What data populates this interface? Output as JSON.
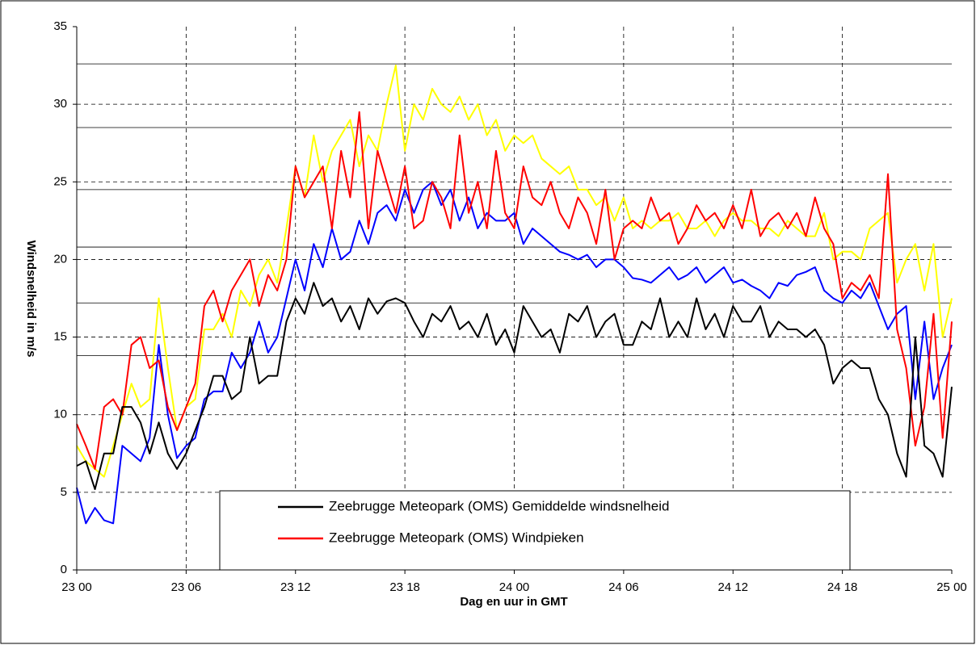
{
  "chart_data": {
    "type": "line",
    "xlabel": "Dag en uur in GMT",
    "ylabel": "Windsnelheid in m/s",
    "x": [
      0,
      0.5,
      1,
      1.5,
      2,
      2.5,
      3,
      3.5,
      4,
      4.5,
      5,
      5.5,
      6,
      6.5,
      7,
      7.5,
      8,
      8.5,
      9,
      9.5,
      10,
      10.5,
      11,
      11.5,
      12,
      12.5,
      13,
      13.5,
      14,
      14.5,
      15,
      15.5,
      16,
      16.5,
      17,
      17.5,
      18,
      18.5,
      19,
      19.5,
      20,
      20.5,
      21,
      21.5,
      22,
      22.5,
      23,
      23.5,
      24,
      24.5,
      25,
      25.5,
      26,
      26.5,
      27,
      27.5,
      28,
      28.5,
      29,
      29.5,
      30,
      30.5,
      31,
      31.5,
      32,
      32.5,
      33,
      33.5,
      34,
      34.5,
      35,
      35.5,
      36,
      36.5,
      37,
      37.5,
      38,
      38.5,
      39,
      39.5,
      40,
      40.5,
      41,
      41.5,
      42,
      42.5,
      43,
      43.5,
      44,
      44.5,
      45,
      45.5,
      46,
      46.5,
      47,
      47.5,
      48
    ],
    "series": [
      {
        "name": "Zeebrugge Meteopark (OMS) Gemiddelde windsnelheid",
        "color": "#000000",
        "values": [
          6.7,
          7,
          5.2,
          7.5,
          7.5,
          10.5,
          10.5,
          9.5,
          7.5,
          9.5,
          7.5,
          6.5,
          7.5,
          9,
          10.5,
          12.5,
          12.5,
          11,
          11.5,
          15,
          12,
          12.5,
          12.5,
          16,
          17.5,
          16.5,
          18.5,
          17,
          17.5,
          16,
          17,
          15.5,
          17.5,
          16.5,
          17.3,
          17.5,
          17.2,
          16,
          15,
          16.5,
          16,
          17,
          15.5,
          16,
          15,
          16.5,
          14.5,
          15.5,
          14,
          17,
          16,
          15,
          15.5,
          14,
          16.5,
          16,
          17,
          15,
          16,
          16.5,
          14.5,
          14.5,
          16,
          15.5,
          17.5,
          15,
          16,
          15,
          17.5,
          15.5,
          16.5,
          15,
          17,
          16,
          16,
          17,
          15,
          16,
          15.5,
          15.5,
          15,
          15.5,
          14.5,
          12,
          13,
          13.5,
          13,
          13,
          11,
          10,
          7.5,
          6,
          15,
          8,
          7.5,
          6,
          11.8
        ]
      },
      {
        "name": "Zeebrugge Meteopark (OMS) Windpieken",
        "color": "#ff0000",
        "values": [
          9.4,
          8,
          6.5,
          10.5,
          11,
          10,
          14.5,
          15,
          13,
          13.5,
          10.5,
          9,
          10.5,
          12,
          17,
          18,
          16,
          18,
          19,
          20,
          17,
          19,
          18,
          20,
          26,
          24,
          25,
          26,
          22,
          27,
          24,
          29.5,
          22,
          27,
          25,
          23,
          26,
          22,
          22.5,
          25,
          24,
          22,
          28,
          23,
          25,
          22,
          27,
          23,
          22,
          26,
          24,
          23.5,
          25,
          23,
          22,
          24,
          23,
          21,
          24.5,
          20,
          22,
          22.5,
          22,
          24,
          22.5,
          23,
          21,
          22,
          23.5,
          22.5,
          23,
          22,
          23.5,
          22,
          24.5,
          21.5,
          22.5,
          23,
          22,
          23,
          21.5,
          24,
          22,
          21,
          17.5,
          18.5,
          18,
          19,
          17.5,
          25.5,
          15.5,
          13,
          8,
          10.5,
          16.5,
          8.5,
          16
        ]
      },
      {
        "color": "#0000ff",
        "values": [
          5.3,
          3,
          4,
          3.2,
          3,
          8,
          7.5,
          7,
          8.5,
          14.5,
          10,
          7.2,
          8,
          8.5,
          11,
          11.5,
          11.5,
          14,
          13,
          14,
          16,
          14,
          15,
          17.5,
          20,
          18,
          21,
          19.5,
          22,
          20,
          20.5,
          22.5,
          21,
          23,
          23.5,
          22.5,
          24.5,
          23,
          24.5,
          25,
          23.5,
          24.5,
          22.5,
          24,
          22,
          23,
          22.5,
          22.5,
          23,
          21,
          22,
          21.5,
          21,
          20.5,
          20.3,
          20,
          20.3,
          19.5,
          20,
          20,
          19.5,
          18.8,
          18.7,
          18.5,
          19,
          19.5,
          18.7,
          19,
          19.5,
          18.5,
          19,
          19.5,
          18.5,
          18.7,
          18.3,
          18,
          17.5,
          18.5,
          18.3,
          19,
          19.2,
          19.5,
          18,
          17.5,
          17.2,
          18,
          17.5,
          18.5,
          17,
          15.5,
          16.5,
          17,
          11,
          16,
          11,
          13,
          14.5
        ]
      },
      {
        "color": "#ffff00",
        "values": [
          8,
          7,
          6.5,
          6,
          8,
          10,
          12,
          10.5,
          11,
          17.5,
          13,
          9,
          10.5,
          11,
          15.5,
          15.5,
          16.5,
          15,
          18,
          17,
          19,
          20,
          18.5,
          22,
          26,
          24,
          28,
          25,
          27,
          28,
          29,
          26,
          28,
          27,
          30,
          32.5,
          27,
          30,
          29,
          31,
          30,
          29.5,
          30.5,
          29,
          30,
          28,
          29,
          27,
          28,
          27.5,
          28,
          26.5,
          26,
          25.5,
          26,
          24.5,
          24.5,
          23.5,
          24,
          22.5,
          24,
          22,
          22.5,
          22,
          22.5,
          22.5,
          23,
          22,
          22,
          22.5,
          21.5,
          22.5,
          23,
          22.5,
          22.5,
          22,
          22,
          21.5,
          22.5,
          22,
          21.5,
          21.5,
          23,
          20,
          20.5,
          20.5,
          20,
          22,
          22.5,
          23,
          18.5,
          20,
          21,
          18,
          21,
          15,
          17.5
        ]
      }
    ],
    "reference_lines": [
      13.8,
      17.2,
      20.8,
      24.5,
      28.5,
      32.6
    ],
    "xlim": [
      0,
      48
    ],
    "xticks": [
      {
        "value": 0,
        "label": "23 00"
      },
      {
        "value": 6,
        "label": "23 06"
      },
      {
        "value": 12,
        "label": "23 12"
      },
      {
        "value": 18,
        "label": "23 18"
      },
      {
        "value": 24,
        "label": "24 00"
      },
      {
        "value": 30,
        "label": "24 06"
      },
      {
        "value": 36,
        "label": "24 12"
      },
      {
        "value": 42,
        "label": "24 18"
      },
      {
        "value": 48,
        "label": "25 00"
      }
    ],
    "ylim": [
      0,
      35
    ],
    "yticks": [
      0,
      5,
      10,
      15,
      20,
      25,
      30,
      35
    ],
    "grid": true
  }
}
